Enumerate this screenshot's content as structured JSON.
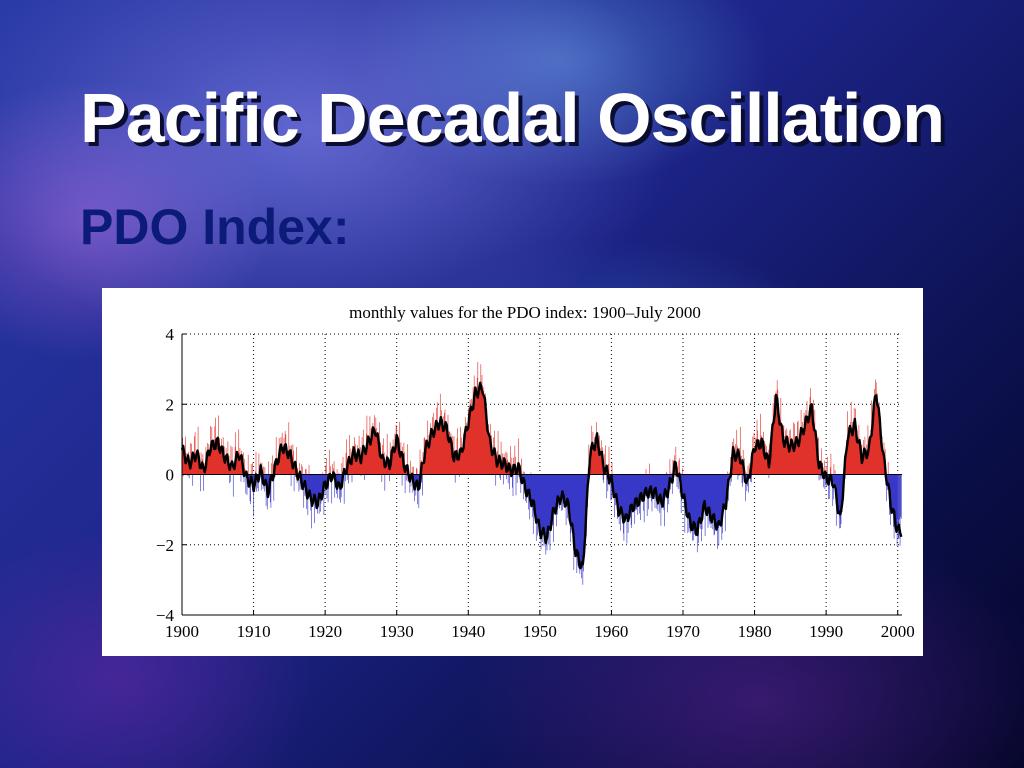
{
  "slide": {
    "title": "Pacific Decadal Oscillation",
    "subtitle": "PDO Index:"
  },
  "chart_data": {
    "type": "area",
    "title": "monthly values for the PDO index: 1900–July 2000",
    "xlabel": "",
    "ylabel": "",
    "xlim": [
      1900,
      2000.6
    ],
    "ylim": [
      -4,
      4
    ],
    "x_ticks": [
      "1900",
      "1910",
      "1920",
      "1930",
      "1940",
      "1950",
      "1960",
      "1970",
      "1980",
      "1990",
      "2000"
    ],
    "y_ticks": [
      "4",
      "2",
      "0",
      "−2",
      "−4"
    ],
    "grid": true,
    "positive_color": "#e0322a",
    "negative_color": "#3838c8",
    "smoothed_line_color": "#000000",
    "smoothed_approx": {
      "x": [
        1900,
        1901,
        1902,
        1903,
        1904,
        1905,
        1906,
        1907,
        1908,
        1909,
        1910,
        1911,
        1912,
        1913,
        1914,
        1915,
        1916,
        1917,
        1918,
        1919,
        1920,
        1921,
        1922,
        1923,
        1924,
        1925,
        1926,
        1927,
        1928,
        1929,
        1930,
        1931,
        1932,
        1933,
        1934,
        1935,
        1936,
        1937,
        1938,
        1939,
        1940,
        1941,
        1942,
        1943,
        1944,
        1945,
        1946,
        1947,
        1948,
        1949,
        1950,
        1951,
        1952,
        1953,
        1954,
        1955,
        1956,
        1957,
        1958,
        1959,
        1960,
        1961,
        1962,
        1963,
        1964,
        1965,
        1966,
        1967,
        1968,
        1969,
        1970,
        1971,
        1972,
        1973,
        1974,
        1975,
        1976,
        1977,
        1978,
        1979,
        1980,
        1981,
        1982,
        1983,
        1984,
        1985,
        1986,
        1987,
        1988,
        1989,
        1990,
        1991,
        1992,
        1993,
        1994,
        1995,
        1996,
        1997,
        1998,
        1999,
        2000
      ],
      "y": [
        0.7,
        0.3,
        0.6,
        0.1,
        0.8,
        0.9,
        0.5,
        0.2,
        0.6,
        -0.1,
        -0.3,
        0.1,
        -0.5,
        0.2,
        0.8,
        0.6,
        0.1,
        -0.3,
        -0.7,
        -0.8,
        -0.3,
        0.0,
        -0.4,
        0.2,
        0.6,
        0.5,
        0.9,
        1.3,
        0.4,
        0.3,
        1.0,
        0.3,
        -0.1,
        -0.4,
        0.7,
        1.2,
        1.5,
        1.3,
        0.5,
        0.6,
        1.5,
        2.3,
        2.5,
        0.9,
        0.4,
        0.3,
        0.1,
        0.2,
        -0.4,
        -0.8,
        -1.6,
        -1.8,
        -1.0,
        -0.6,
        -0.9,
        -2.2,
        -2.7,
        0.6,
        1.0,
        0.2,
        -0.2,
        -1.0,
        -1.3,
        -0.9,
        -0.7,
        -0.5,
        -0.5,
        -0.8,
        -0.4,
        0.3,
        -0.6,
        -1.4,
        -1.6,
        -0.9,
        -1.2,
        -1.5,
        -0.8,
        0.6,
        0.5,
        -0.3,
        0.8,
        0.9,
        0.3,
        2.2,
        1.0,
        0.8,
        0.9,
        1.4,
        1.9,
        0.3,
        -0.1,
        -0.2,
        -1.3,
        1.1,
        1.4,
        0.5,
        0.7,
        2.4,
        0.5,
        -0.8,
        -1.6
      ]
    }
  }
}
